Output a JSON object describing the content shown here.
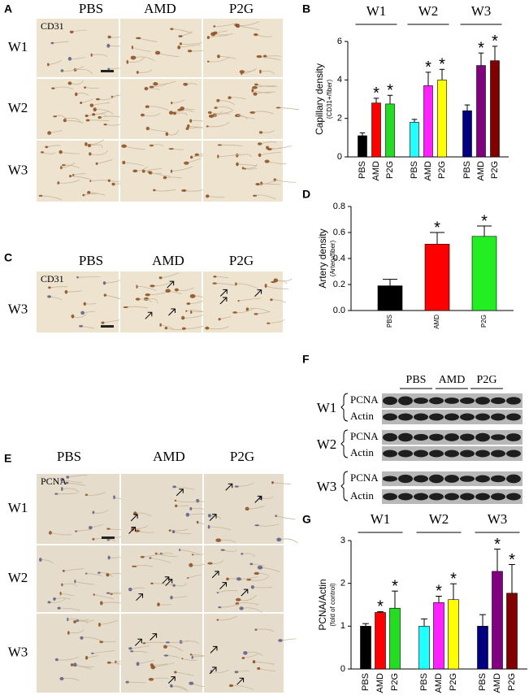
{
  "panels": {
    "A": {
      "letter": "A",
      "columns": [
        "PBS",
        "AMD",
        "P2G"
      ],
      "rows": [
        "W1",
        "W2",
        "W3"
      ],
      "stain": "CD31"
    },
    "C": {
      "letter": "C",
      "columns": [
        "PBS",
        "AMD",
        "P2G"
      ],
      "rows": [
        "W3"
      ],
      "stain": "CD31"
    },
    "E": {
      "letter": "E",
      "columns": [
        "PBS",
        "AMD",
        "P2G"
      ],
      "rows": [
        "W1",
        "W2",
        "W3"
      ],
      "stain": "PCNA"
    },
    "F": {
      "letter": "F",
      "columns": [
        "PBS",
        "AMD",
        "P2G"
      ],
      "rows": [
        {
          "name": "W1",
          "bands": [
            "PCNA",
            "Actin"
          ]
        },
        {
          "name": "W2",
          "bands": [
            "PCNA",
            "Actin"
          ]
        },
        {
          "name": "W3",
          "bands": [
            "PCNA",
            "Actin"
          ]
        }
      ]
    }
  },
  "chart_data": [
    {
      "letter": "B",
      "type": "bar",
      "groups": [
        "W1",
        "W2",
        "W3"
      ],
      "categories": [
        "PBS",
        "AMD",
        "P2G",
        "PBS",
        "AMD",
        "P2G",
        "PBS",
        "AMD",
        "P2G"
      ],
      "values": [
        1.1,
        2.8,
        2.75,
        1.8,
        3.7,
        4.0,
        2.4,
        4.75,
        5.0
      ],
      "errors": [
        0.15,
        0.25,
        0.45,
        0.15,
        0.7,
        0.55,
        0.3,
        0.65,
        0.75
      ],
      "colors": [
        "#000000",
        "#ff0000",
        "#22dd22",
        "#22ffff",
        "#ff22ff",
        "#ffff00",
        "#000080",
        "#800080",
        "#800000"
      ],
      "marks": [
        null,
        "*",
        "*",
        null,
        "*",
        "*",
        null,
        "*",
        "*"
      ],
      "y_label": "Capillary density",
      "y_sublabel": "(CD31+/fiber)",
      "ylim": [
        0,
        6
      ],
      "yticks": [
        0,
        2,
        4,
        6
      ]
    },
    {
      "letter": "D",
      "type": "bar",
      "categories": [
        "PBS",
        "AMD",
        "P2G"
      ],
      "values": [
        0.19,
        0.51,
        0.57
      ],
      "errors": [
        0.05,
        0.09,
        0.08
      ],
      "colors": [
        "#000000",
        "#ff0000",
        "#22ee22"
      ],
      "marks": [
        null,
        "*",
        "*"
      ],
      "y_label": "Artery density",
      "y_sublabel": "(Artery/fiber)",
      "ylim": [
        0,
        0.8
      ],
      "yticks": [
        {
          "value": 0,
          "label": "0.0"
        },
        0.2,
        0.4,
        0.6,
        0.8
      ]
    },
    {
      "letter": "G",
      "type": "bar",
      "groups": [
        "W1",
        "W2",
        "W3"
      ],
      "categories": [
        "PBS",
        "AMD",
        "P2G",
        "PBS",
        "AMD",
        "P2G",
        "PBS",
        "AMD",
        "P2G"
      ],
      "values": [
        1.0,
        1.32,
        1.42,
        1.0,
        1.55,
        1.62,
        1.0,
        2.28,
        1.77
      ],
      "errors": [
        0.06,
        0.02,
        0.4,
        0.17,
        0.15,
        0.37,
        0.27,
        0.52,
        0.67
      ],
      "colors": [
        "#000000",
        "#ff0000",
        "#22dd22",
        "#22ffff",
        "#ff22ff",
        "#ffff00",
        "#000080",
        "#800080",
        "#800000"
      ],
      "marks": [
        null,
        "*",
        "*",
        null,
        "*",
        "*",
        null,
        "*",
        "*"
      ],
      "y_label": "PCNA/Actin",
      "y_sublabel": "(fold of control)",
      "ylim": [
        0,
        3
      ],
      "yticks": [
        0,
        1,
        2,
        3
      ]
    }
  ]
}
